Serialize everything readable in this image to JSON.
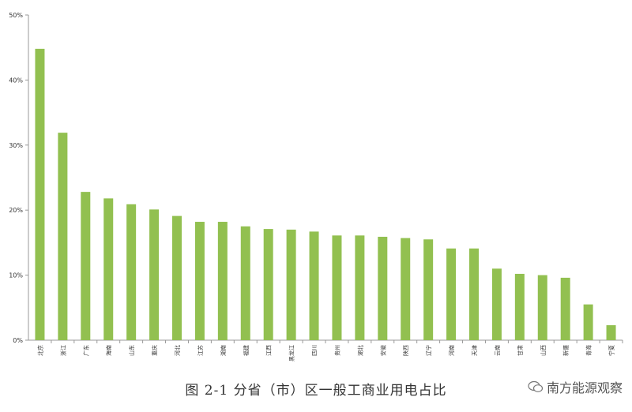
{
  "chart_data": {
    "type": "bar",
    "title": "图 2-1 分省（市）区一般工商业用电占比",
    "xlabel": "",
    "ylabel": "",
    "ylim": [
      0,
      50
    ],
    "yticks": [
      "0%",
      "10%",
      "20%",
      "30%",
      "40%",
      "50%"
    ],
    "grid": false,
    "bar_color": "#92C050",
    "categories": [
      "北京",
      "浙江",
      "广东",
      "海南",
      "山东",
      "重庆",
      "河北",
      "江苏",
      "湖南",
      "福建",
      "江西",
      "黑龙江",
      "四川",
      "贵州",
      "湖北",
      "安徽",
      "陕西",
      "辽宁",
      "河南",
      "天津",
      "云南",
      "甘肃",
      "山西",
      "新疆",
      "青海",
      "宁夏"
    ],
    "values": [
      44.8,
      31.9,
      22.8,
      21.8,
      20.9,
      20.1,
      19.1,
      18.2,
      18.2,
      17.5,
      17.1,
      17.0,
      16.7,
      16.1,
      16.1,
      15.9,
      15.7,
      15.5,
      14.1,
      14.1,
      11.0,
      10.2,
      10.0,
      9.6,
      5.5,
      2.3
    ]
  },
  "watermark": {
    "text": "南方能源观察",
    "icon": "wechat-icon"
  }
}
